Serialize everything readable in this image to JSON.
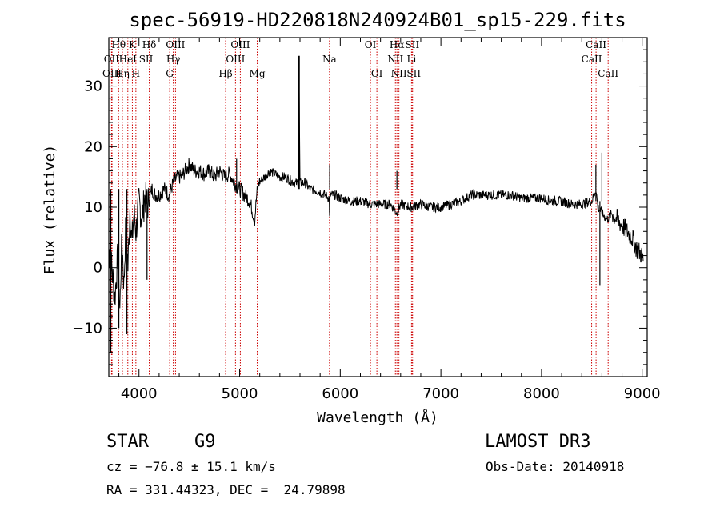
{
  "colors": {
    "spectrum": "#000000",
    "line_marker": "#cc0000",
    "axis": "#000000"
  },
  "chart_data": {
    "type": "line",
    "title": "spec-56919-HD220818N240924B01_sp15-229.fits",
    "xlabel": "Wavelength (Å)",
    "ylabel": "Flux (relative)",
    "xlim": [
      3700,
      9050
    ],
    "ylim": [
      -18,
      38
    ],
    "xticks": [
      4000,
      5000,
      6000,
      7000,
      8000,
      9000
    ],
    "xtick_labels": [
      "4000",
      "5000",
      "6000",
      "7000",
      "8000",
      "9000"
    ],
    "yticks": [
      -10,
      0,
      10,
      20,
      30
    ],
    "ytick_labels": [
      "−10",
      "0",
      "10",
      "20",
      "30"
    ],
    "grid": false,
    "series": [
      {
        "name": "spectrum",
        "x": [
          3700,
          3730,
          3760,
          3790,
          3810,
          3830,
          3850,
          3870,
          3890,
          3910,
          3930,
          3950,
          3970,
          4000,
          4030,
          4060,
          4080,
          4100,
          4130,
          4160,
          4200,
          4250,
          4300,
          4340,
          4380,
          4420,
          4460,
          4500,
          4550,
          4600,
          4650,
          4700,
          4750,
          4800,
          4850,
          4900,
          4950,
          5000,
          5050,
          5100,
          5150,
          5170,
          5190,
          5250,
          5300,
          5350,
          5400,
          5450,
          5500,
          5550,
          5580,
          5590,
          5600,
          5650,
          5700,
          5800,
          5850,
          5890,
          5895,
          5900,
          5950,
          6000,
          6100,
          6200,
          6300,
          6400,
          6500,
          6563,
          6600,
          6700,
          6800,
          6900,
          7000,
          7100,
          7200,
          7300,
          7400,
          7500,
          7600,
          7700,
          7800,
          7900,
          8000,
          8100,
          8200,
          8300,
          8400,
          8500,
          8540,
          8560,
          8600,
          8650,
          8700,
          8750,
          8800,
          8850,
          8900,
          8950,
          9000,
          9010
        ],
        "y": [
          3,
          0,
          -5,
          2,
          -7,
          5,
          -3,
          8,
          0,
          10,
          4,
          9,
          6,
          11,
          8,
          12,
          10,
          11,
          13,
          12,
          12,
          13,
          12,
          14,
          15,
          15,
          16,
          17,
          16,
          16,
          15.5,
          16,
          15,
          16,
          15,
          15.5,
          14,
          13,
          12,
          11,
          8,
          12,
          14,
          15,
          16,
          15.5,
          15,
          15,
          14.5,
          14,
          14,
          32,
          14,
          14,
          13,
          12.5,
          12,
          11.5,
          8,
          12,
          12,
          11.5,
          11,
          11,
          10.5,
          10.5,
          10.5,
          9,
          10.5,
          10,
          10.5,
          10,
          10,
          10.5,
          11,
          12,
          12,
          12,
          12,
          12,
          11.5,
          11.5,
          11.5,
          11,
          11,
          10.5,
          10.5,
          11,
          13,
          10,
          9,
          8,
          9,
          8,
          7,
          6,
          5,
          3,
          2,
          1
        ]
      }
    ],
    "spikes": [
      {
        "x": 3720,
        "y": -14
      },
      {
        "x": 3800,
        "y": -10
      },
      {
        "x": 3880,
        "y": -11
      },
      {
        "x": 4080,
        "y": -2
      },
      {
        "x": 5590,
        "y": 35
      },
      {
        "x": 5895,
        "y": 17
      },
      {
        "x": 6563,
        "y": 16
      },
      {
        "x": 8540,
        "y": 17
      },
      {
        "x": 8580,
        "y": -3
      },
      {
        "x": 8600,
        "y": 19
      },
      {
        "x": 4970,
        "y": 18
      }
    ],
    "spectral_lines": [
      {
        "label": "Hθ",
        "x": 3798,
        "row": 1
      },
      {
        "label": "OII",
        "x": 3727,
        "row": 2
      },
      {
        "label": "OIII",
        "x": 3732,
        "row": 3
      },
      {
        "label": "HeI",
        "x": 3889,
        "row": 2
      },
      {
        "label": "Hη",
        "x": 3835,
        "row": 3
      },
      {
        "label": "K",
        "x": 3934,
        "row": 1
      },
      {
        "label": "H",
        "x": 3969,
        "row": 3
      },
      {
        "label": "SII",
        "x": 4070,
        "row": 2
      },
      {
        "label": "Hδ",
        "x": 4102,
        "row": 1
      },
      {
        "label": "OIII",
        "x": 4363,
        "row": 1
      },
      {
        "label": "Hγ",
        "x": 4341,
        "row": 2
      },
      {
        "label": "G",
        "x": 4305,
        "row": 3
      },
      {
        "label": "Hβ",
        "x": 4861,
        "row": 3
      },
      {
        "label": "OIII",
        "x": 5007,
        "row": 1
      },
      {
        "label": "OIII",
        "x": 4959,
        "row": 2
      },
      {
        "label": "Mg",
        "x": 5175,
        "row": 3
      },
      {
        "label": "Na",
        "x": 5893,
        "row": 2
      },
      {
        "label": "OI",
        "x": 6300,
        "row": 1
      },
      {
        "label": "OI",
        "x": 6364,
        "row": 3
      },
      {
        "label": "Hα",
        "x": 6563,
        "row": 1
      },
      {
        "label": "NII",
        "x": 6548,
        "row": 2
      },
      {
        "label": "NII",
        "x": 6583,
        "row": 3
      },
      {
        "label": "SII",
        "x": 6716,
        "row": 1
      },
      {
        "label": "Li",
        "x": 6708,
        "row": 2
      },
      {
        "label": "SII",
        "x": 6731,
        "row": 3
      },
      {
        "label": "CaII",
        "x": 8542,
        "row": 1
      },
      {
        "label": "CaII",
        "x": 8498,
        "row": 2
      },
      {
        "label": "CaII",
        "x": 8662,
        "row": 3
      }
    ]
  },
  "info": {
    "class": "STAR",
    "subclass": "G9",
    "survey": "LAMOST DR3",
    "velocity": "cz = −76.8 ± 15.1 km/s",
    "obs_date": "Obs-Date: 20140918",
    "coords": "RA = 331.44323, DEC =  24.79898"
  }
}
